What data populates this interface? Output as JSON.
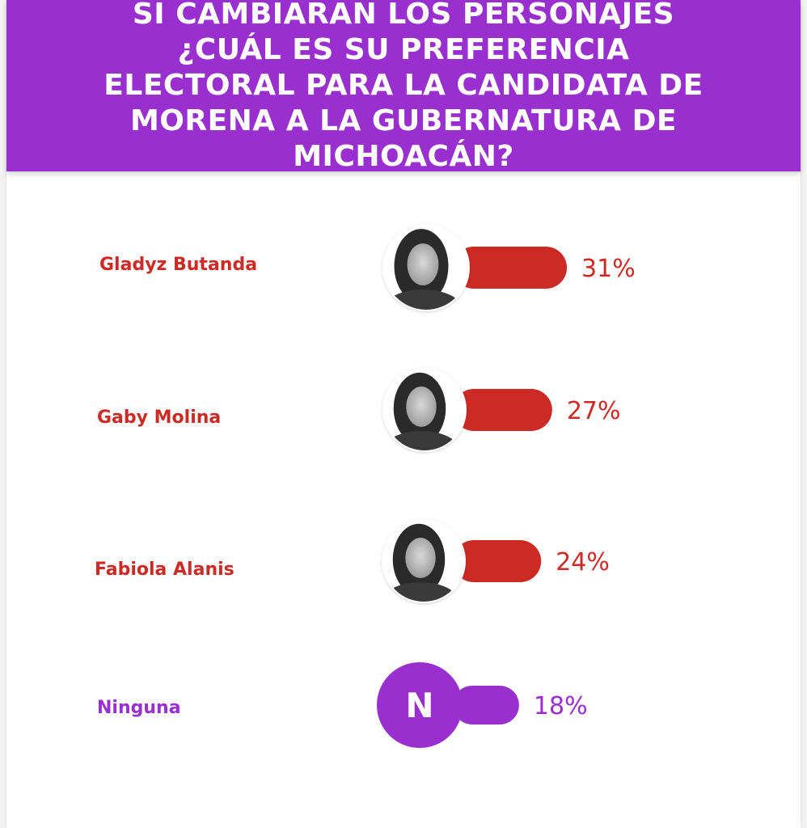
{
  "title": "SI CAMBIARAN LOS PERSONAJES ¿CUÁL ES SU PREFERENCIA ELECTORAL PARA LA CANDIDATA DE MORENA A LA GUBERNATURA DE MICHOACÁN?",
  "colors": {
    "header": "#9a2fd0",
    "candidate": "#cc2a24",
    "none": "#9a2fd0"
  },
  "chart_data": {
    "type": "bar",
    "categories": [
      "Gladyz Butanda",
      "Gaby Molina",
      "Fabiola Alanis",
      "Ninguna"
    ],
    "values": [
      31,
      27,
      24,
      18
    ],
    "value_labels": [
      "31%",
      "27%",
      "24%",
      "18%"
    ],
    "badge_letter": "N",
    "unit": "%"
  }
}
